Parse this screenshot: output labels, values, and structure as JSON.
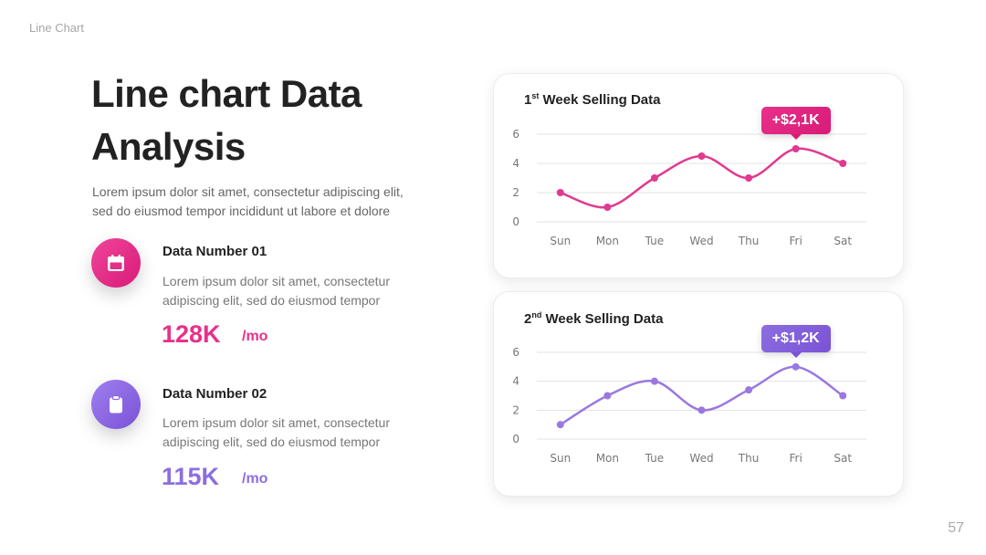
{
  "slide": {
    "section_label": "Line Chart",
    "title_line1": "Line chart Data",
    "title_line2": "Analysis",
    "intro_line1": "Lorem ipsum dolor sit amet, consectetur adipiscing elit,",
    "intro_line2": "sed do eiusmod tempor incididunt ut labore et dolore",
    "page_number": "57"
  },
  "items": [
    {
      "title": "Data Number 01",
      "desc_line1": "Lorem ipsum dolor sit amet, consectetur",
      "desc_line2": "adipiscing elit, sed do eiusmod tempor",
      "value": "128K",
      "unit": "/mo",
      "icon": "calendar-icon",
      "color": "#e8308a"
    },
    {
      "title": "Data Number 02",
      "desc_line1": "Lorem ipsum dolor sit amet, consectetur",
      "desc_line2": "adipiscing elit, sed do eiusmod tempor",
      "value": "115K",
      "unit": "/mo",
      "icon": "clipboard-icon",
      "color": "#8c6ee0"
    }
  ],
  "chart_data": [
    {
      "type": "line",
      "title_num": "1",
      "title_sup": "st",
      "title_rest": " Week Selling Data",
      "categories": [
        "Sun",
        "Mon",
        "Tue",
        "Wed",
        "Thu",
        "Fri",
        "Sat"
      ],
      "series": [
        {
          "values": [
            2,
            1,
            3,
            4.5,
            3,
            5,
            4
          ]
        }
      ],
      "ylim": [
        0,
        6
      ],
      "yticks": [
        0,
        2,
        4,
        6
      ],
      "grid": true,
      "annotation": {
        "text": "+$2,1K",
        "category": "Fri"
      },
      "line_color": "#e03a90",
      "callout_colors": [
        "#e8308a",
        "#d81b78"
      ]
    },
    {
      "type": "line",
      "title_num": "2",
      "title_sup": "nd",
      "title_rest": " Week Selling Data",
      "categories": [
        "Sun",
        "Mon",
        "Tue",
        "Wed",
        "Thu",
        "Fri",
        "Sat"
      ],
      "series": [
        {
          "values": [
            1,
            3,
            4,
            2,
            3.4,
            5,
            3
          ]
        }
      ],
      "ylim": [
        0,
        6
      ],
      "yticks": [
        0,
        2,
        4,
        6
      ],
      "grid": true,
      "annotation": {
        "text": "+$1,2K",
        "category": "Fri"
      },
      "line_color": "#9a78e0",
      "callout_colors": [
        "#8c6ee0",
        "#7a52d6"
      ]
    }
  ]
}
